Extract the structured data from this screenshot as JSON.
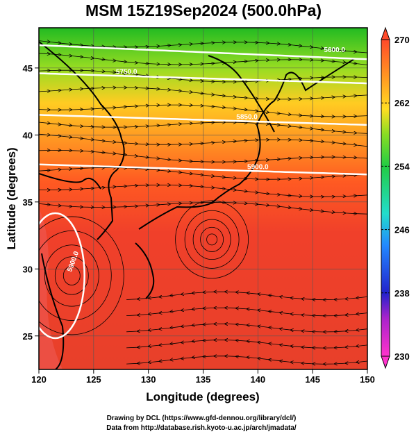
{
  "title": "MSM 15Z19Sep2024 (500.0hPa)",
  "xlabel": "Longitude (degrees)",
  "ylabel": "Latitude  (degrees)",
  "x_ticks": [
    "120",
    "125",
    "130",
    "135",
    "140",
    "145",
    "150"
  ],
  "y_ticks": [
    "25",
    "30",
    "35",
    "40",
    "45"
  ],
  "colorbar_ticks": [
    "270",
    "262",
    "254",
    "246",
    "238",
    "230"
  ],
  "contours": [
    {
      "label": "5600.0",
      "lat": 46.7
    },
    {
      "label": "5750.0",
      "lat": 44.6
    },
    {
      "label": "5850.0",
      "lat": 41.5
    },
    {
      "label": "5900.0",
      "lat": 37.8
    },
    {
      "label": "5900.0",
      "lat": 30.5
    }
  ],
  "credit_lines": [
    "Drawing by DCL (https://www.gfd-dennou.org/library/dcl/)",
    "Data from http://database.rish.kyoto-u.ac.jp/arch/jmadata/"
  ],
  "colors": {
    "warm": "#e8402a",
    "cold_top": "#22bb22",
    "colorbar_low": "#ff33cc",
    "colorbar_high": "#ff4a2a",
    "contour": "#ffffff",
    "coast": "#000000"
  }
}
